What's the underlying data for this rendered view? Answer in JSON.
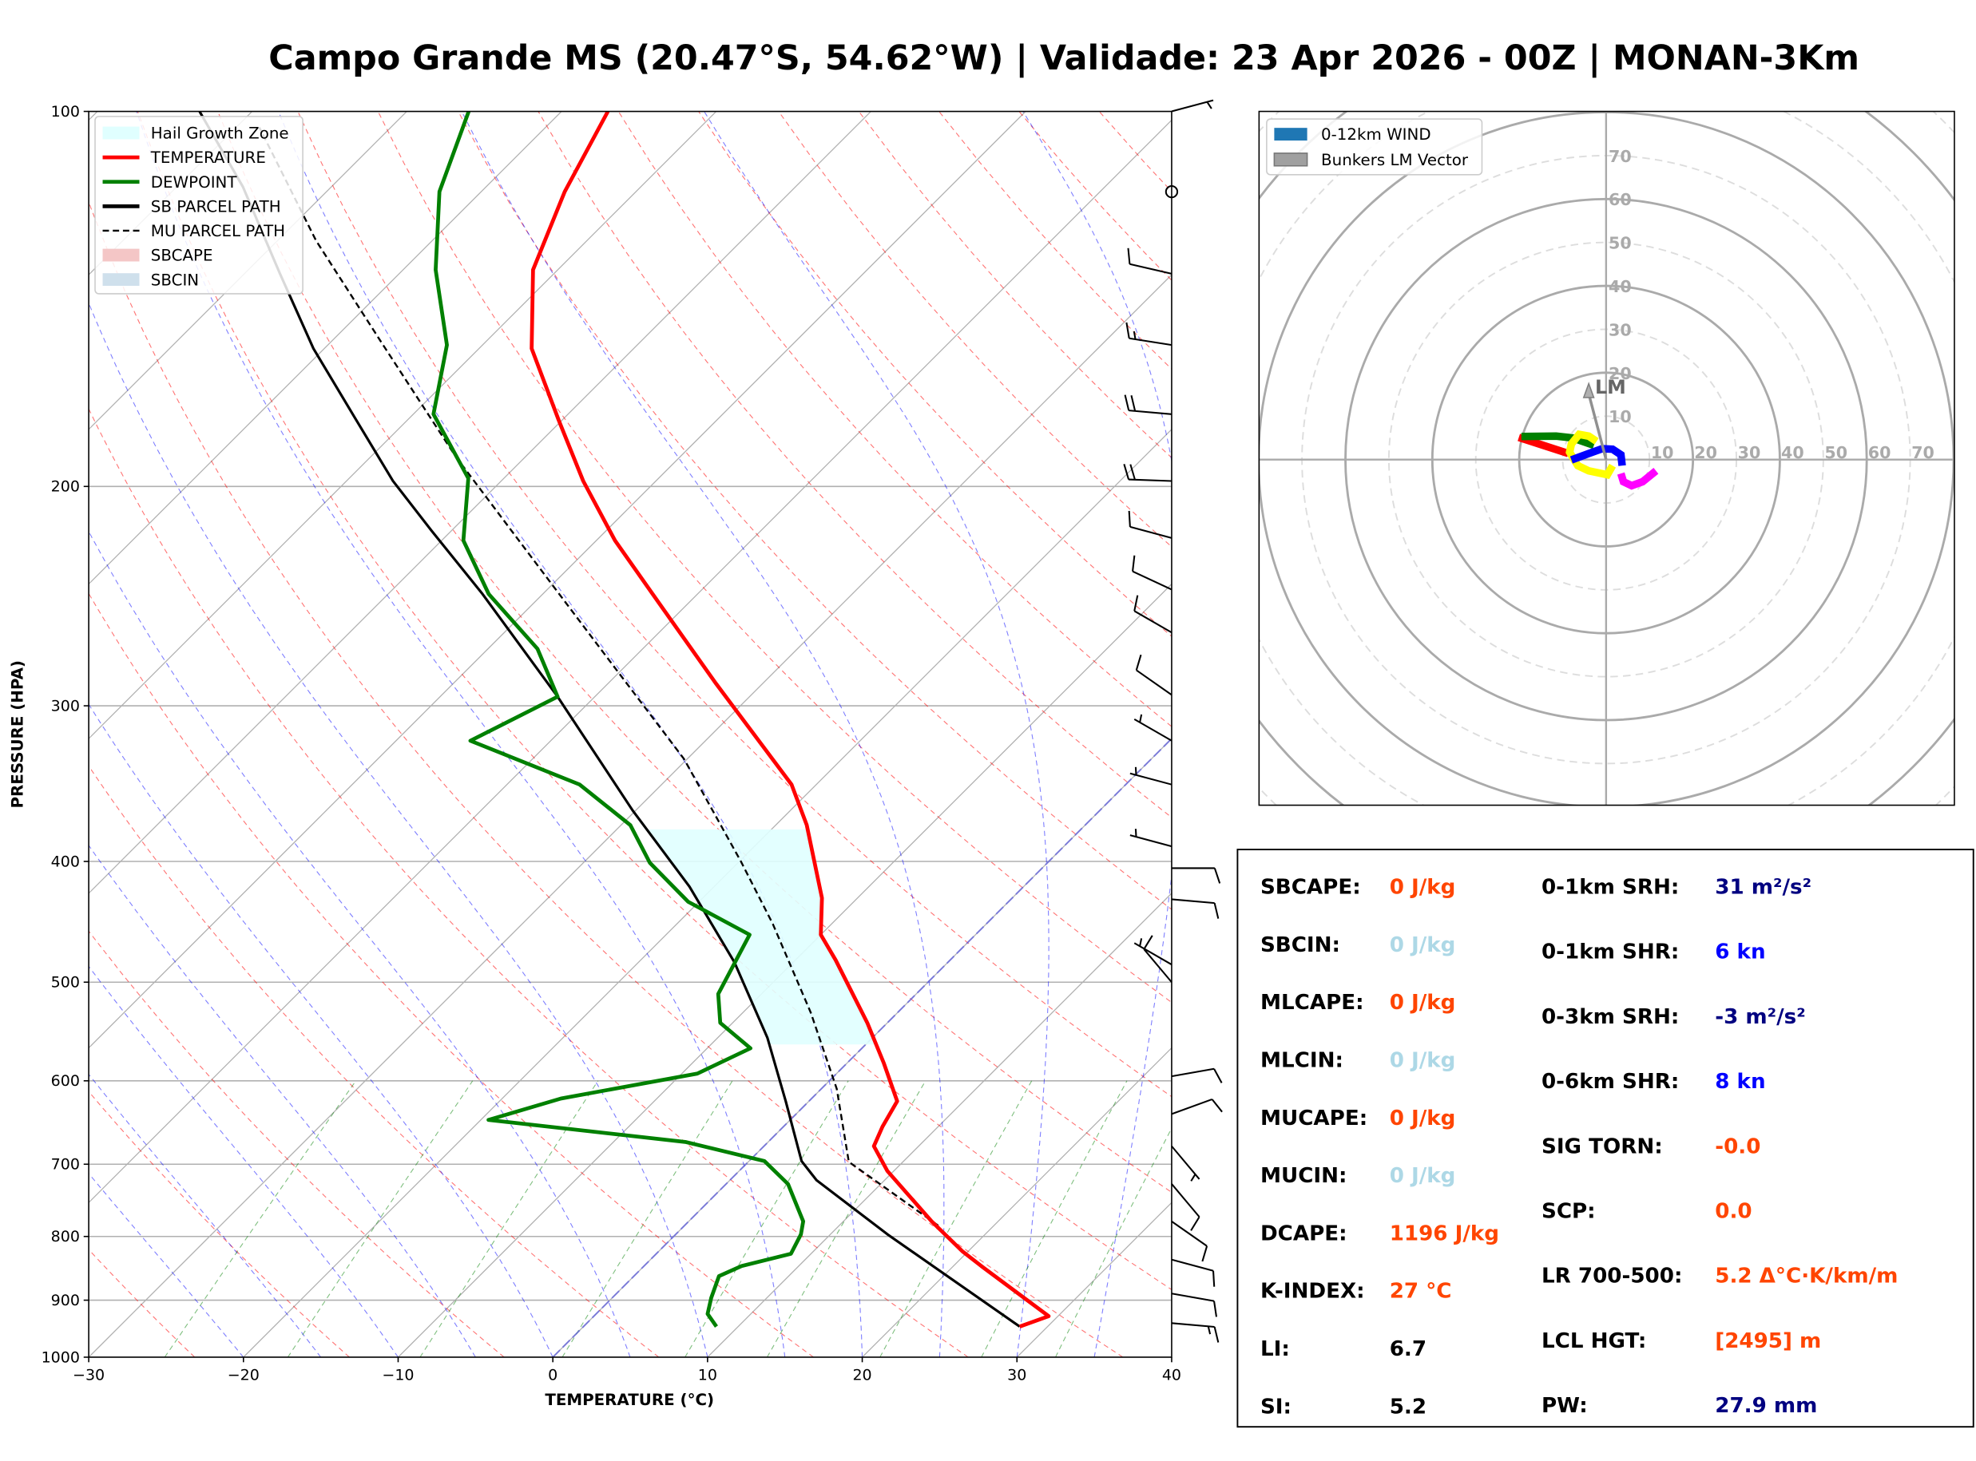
{
  "title": "Campo Grande MS (20.47°S, 54.62°W) | Validade: 23 Apr 2026 - 00Z | MONAN-3Km",
  "chart_data": [
    {
      "type": "skewt",
      "xlabel": "TEMPERATURE (°C)",
      "ylabel": "PRESSURE (HPA)",
      "xlim": [
        -30,
        40
      ],
      "ylim": [
        1000,
        100
      ],
      "xticks": [
        -30,
        -20,
        -10,
        0,
        10,
        20,
        30,
        40
      ],
      "yticks": [
        100,
        200,
        300,
        400,
        500,
        600,
        700,
        800,
        900,
        1000
      ],
      "legend_location": "upper-left",
      "legend": [
        {
          "label": "Hail Growth Zone",
          "color": "#e0ffff",
          "kind": "patch"
        },
        {
          "label": "TEMPERATURE",
          "color": "#ff0000",
          "kind": "line"
        },
        {
          "label": "DEWPOINT",
          "color": "#008000",
          "kind": "line"
        },
        {
          "label": "SB PARCEL PATH",
          "color": "#000000",
          "kind": "line"
        },
        {
          "label": "MU PARCEL PATH",
          "color": "#000000",
          "kind": "dashed"
        },
        {
          "label": "SBCAPE",
          "color": "#f4c6c6",
          "kind": "patch"
        },
        {
          "label": "SBCIN",
          "color": "#cfe0ec",
          "kind": "patch"
        }
      ],
      "temperature": {
        "p": [
          945,
          927,
          845,
          822,
          778,
          709,
          677,
          653,
          623,
          581,
          539,
          480,
          458,
          428,
          374,
          347,
          288,
          244,
          221,
          198,
          177,
          155,
          134,
          116,
          100
        ],
        "T": [
          28.2,
          29.4,
          21.8,
          19.6,
          15.7,
          9.6,
          7.1,
          6.4,
          5.7,
          2.4,
          -1.3,
          -7.4,
          -10.0,
          -12.3,
          -18.0,
          -21.6,
          -33.0,
          -42.9,
          -48.8,
          -54.7,
          -60.2,
          -66.6,
          -71.6,
          -74.6,
          -77.0
        ]
      },
      "dewpoint": {
        "p": [
          945,
          923,
          896,
          861,
          845,
          826,
          797,
          778,
          726,
          696,
          672,
          645,
          620,
          592,
          565,
          539,
          511,
          458,
          431,
          401,
          374,
          347,
          320,
          295,
          270,
          244,
          221,
          197,
          175,
          154,
          134,
          116,
          100
        ],
        "T": [
          8.6,
          7.2,
          6.4,
          5.5,
          6.3,
          8.7,
          8.1,
          7.4,
          4.0,
          1.0,
          -5.3,
          -19.5,
          -16.2,
          -9.0,
          -7.2,
          -10.8,
          -12.8,
          -14.6,
          -20.7,
          -25.7,
          -29.4,
          -35.3,
          -45.2,
          -42.4,
          -46.8,
          -53.5,
          -58.6,
          -62.3,
          -68.7,
          -72.3,
          -77.9,
          -82.7,
          -86.0
        ]
      },
      "sb_parcel": {
        "p": [
          945,
          797,
          721,
          696,
          623,
          554,
          482,
          419,
          364,
          295,
          244,
          217,
          198,
          176,
          155,
          135,
          115,
          100
        ],
        "T": [
          28.2,
          13.7,
          5.6,
          3.4,
          -1.5,
          -6.8,
          -13.8,
          -21.6,
          -30.2,
          -42.4,
          -53.9,
          -61.3,
          -67.0,
          -73.6,
          -80.7,
          -87.7,
          -95.7,
          -103.4
        ]
      },
      "mu_parcel": {
        "p": [
          784,
          697,
          609,
          529,
          449,
          400,
          331,
          275,
          228,
          189,
          153,
          127,
          103
        ],
        "T": [
          16.4,
          6.5,
          1.0,
          -5.6,
          -13.8,
          -19.9,
          -30.2,
          -41.6,
          -53.1,
          -64.6,
          -76.8,
          -87.5,
          -98.5
        ]
      },
      "hail_growth_zone": {
        "p_bottom": 561,
        "p_top": 374
      },
      "wind_barbs": [
        {
          "p": 100,
          "dir": 75,
          "kn": 5
        },
        {
          "p": 116,
          "dir": 0,
          "kn": 0
        },
        {
          "p": 135,
          "dir": 283,
          "kn": 10
        },
        {
          "p": 154,
          "dir": 279,
          "kn": 15
        },
        {
          "p": 175,
          "dir": 275,
          "kn": 20
        },
        {
          "p": 198,
          "dir": 272,
          "kn": 20
        },
        {
          "p": 220,
          "dir": 285,
          "kn": 10
        },
        {
          "p": 242,
          "dir": 295,
          "kn": 10
        },
        {
          "p": 262,
          "dir": 300,
          "kn": 10
        },
        {
          "p": 294,
          "dir": 305,
          "kn": 10
        },
        {
          "p": 320,
          "dir": 300,
          "kn": 5
        },
        {
          "p": 347,
          "dir": 285,
          "kn": 5
        },
        {
          "p": 389,
          "dir": 285,
          "kn": 5
        },
        {
          "p": 405,
          "dir": 90,
          "kn": 10
        },
        {
          "p": 429,
          "dir": 95,
          "kn": 10
        },
        {
          "p": 484,
          "dir": 300,
          "kn": 5
        },
        {
          "p": 500,
          "dir": 320,
          "kn": 10
        },
        {
          "p": 595,
          "dir": 80,
          "kn": 10
        },
        {
          "p": 638,
          "dir": 70,
          "kn": 10
        },
        {
          "p": 677,
          "dir": 140,
          "kn": 5
        },
        {
          "p": 726,
          "dir": 140,
          "kn": 10
        },
        {
          "p": 778,
          "dir": 125,
          "kn": 10
        },
        {
          "p": 835,
          "dir": 105,
          "kn": 10
        },
        {
          "p": 889,
          "dir": 100,
          "kn": 10
        },
        {
          "p": 939,
          "dir": 95,
          "kn": 15
        }
      ]
    },
    {
      "type": "hodograph",
      "units": "kn",
      "ring_labels": [
        10,
        20,
        30,
        40,
        50,
        60,
        70
      ],
      "legend": [
        {
          "label": "0-12km WIND",
          "color": "#1f77b4"
        },
        {
          "label": "Bunkers LM Vector",
          "color": "#a0a0a0"
        }
      ],
      "segments": [
        {
          "color": "#ff0000",
          "points": [
            [
              -20.1,
              5.1
            ],
            [
              -8.7,
              1.4
            ]
          ]
        },
        {
          "color": "#008000",
          "points": [
            [
              -19.5,
              5.3
            ],
            [
              -11.5,
              5.4
            ],
            [
              -7.7,
              5.0
            ],
            [
              -2.8,
              3.3
            ]
          ]
        },
        {
          "color": "#ffff00",
          "points": [
            [
              -2.2,
              4.2
            ],
            [
              -4.0,
              5.4
            ],
            [
              -6.2,
              5.8
            ],
            [
              -8.0,
              3.6
            ],
            [
              -8.4,
              1.7
            ],
            [
              -6.5,
              -1.4
            ],
            [
              -4.0,
              -2.6
            ],
            [
              0.3,
              -3.5
            ],
            [
              1.5,
              -1.4
            ]
          ]
        },
        {
          "color": "#0000ff",
          "points": [
            [
              -8.0,
              -0.1
            ],
            [
              -4.0,
              1.4
            ],
            [
              -0.9,
              2.5
            ],
            [
              1.5,
              2.4
            ],
            [
              3.4,
              1.1
            ],
            [
              3.7,
              -1.4
            ]
          ]
        },
        {
          "color": "#ff00ff",
          "points": [
            [
              3.4,
              -3.2
            ],
            [
              4.0,
              -5.1
            ],
            [
              5.9,
              -6.0
            ],
            [
              8.4,
              -5.1
            ],
            [
              11.5,
              -2.6
            ]
          ]
        }
      ],
      "bunkers_lm": {
        "u": -4.0,
        "v": 17.5,
        "label": "LM"
      }
    }
  ],
  "indices": {
    "left": [
      {
        "label": "SBCAPE:",
        "value": "0 J/kg",
        "color": "#ff4500"
      },
      {
        "label": "SBCIN:",
        "value": "0 J/kg",
        "color": "#add8e6"
      },
      {
        "label": "MLCAPE:",
        "value": "0 J/kg",
        "color": "#ff4500"
      },
      {
        "label": "MLCIN:",
        "value": "0 J/kg",
        "color": "#add8e6"
      },
      {
        "label": "MUCAPE:",
        "value": "0 J/kg",
        "color": "#ff4500"
      },
      {
        "label": "MUCIN:",
        "value": "0 J/kg",
        "color": "#add8e6"
      },
      {
        "label": "DCAPE:",
        "value": "1196 J/kg",
        "color": "#ff4500"
      },
      {
        "label": "K-INDEX:",
        "value": "27 °C",
        "color": "#ff4500"
      },
      {
        "label": "LI:",
        "value": "6.7",
        "color": "#000000"
      },
      {
        "label": "SI:",
        "value": "5.2",
        "color": "#000000"
      }
    ],
    "right": [
      {
        "label": "0-1km SRH:",
        "value": "31 m²/s²",
        "color": "#000080"
      },
      {
        "label": "0-1km SHR:",
        "value": "6 kn",
        "color": "#0000ff"
      },
      {
        "label": "0-3km SRH:",
        "value": "-3 m²/s²",
        "color": "#000080"
      },
      {
        "label": "0-6km SHR:",
        "value": "8 kn",
        "color": "#0000ff"
      },
      {
        "label": "SIG TORN:",
        "value": "-0.0",
        "color": "#ff4500"
      },
      {
        "label": "SCP:",
        "value": "0.0",
        "color": "#ff4500"
      },
      {
        "label": "LR 700-500:",
        "value": "5.2 Δ°C·K/km/m",
        "color": "#ff4500"
      },
      {
        "label": "LCL HGT:",
        "value": "[2495] m",
        "color": "#ff4500"
      },
      {
        "label": "PW:",
        "value": "27.9 mm",
        "color": "#000080"
      }
    ]
  }
}
